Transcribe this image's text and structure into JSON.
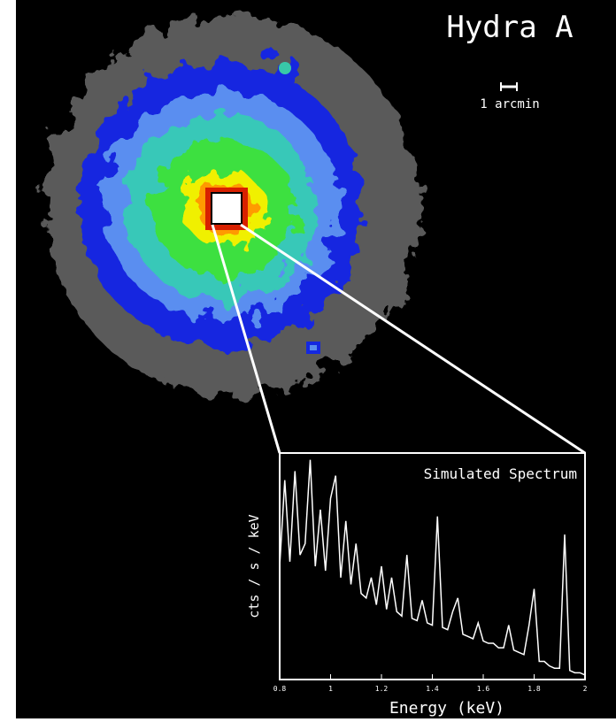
{
  "title": "Hydra A",
  "scale_label": "1 arcmin",
  "chart_data": {
    "type": "line",
    "title": "Simulated Spectrum",
    "x_label": "Energy (keV)",
    "y_label": "cts / s / keV",
    "x": [
      0.8,
      0.82,
      0.84,
      0.86,
      0.88,
      0.9,
      0.92,
      0.94,
      0.96,
      0.98,
      1.0,
      1.02,
      1.04,
      1.06,
      1.08,
      1.1,
      1.12,
      1.14,
      1.16,
      1.18,
      1.2,
      1.22,
      1.24,
      1.26,
      1.28,
      1.3,
      1.32,
      1.34,
      1.36,
      1.38,
      1.4,
      1.42,
      1.44,
      1.46,
      1.48,
      1.5,
      1.52,
      1.54,
      1.56,
      1.58,
      1.6,
      1.62,
      1.64,
      1.66,
      1.68,
      1.7,
      1.72,
      1.74,
      1.76,
      1.78,
      1.8,
      1.82,
      1.84,
      1.86,
      1.88,
      1.9,
      1.92,
      1.94,
      1.96,
      1.98,
      2.0
    ],
    "series": [
      {
        "color": "#ffffff",
        "values": [
          50,
          88,
          52,
          92,
          55,
          60,
          97,
          50,
          75,
          48,
          80,
          90,
          45,
          70,
          42,
          60,
          38,
          36,
          45,
          33,
          50,
          31,
          45,
          30,
          28,
          55,
          27,
          26,
          35,
          25,
          24,
          72,
          23,
          22,
          30,
          36,
          20,
          19,
          18,
          25,
          17,
          16,
          16,
          14,
          14,
          24,
          13,
          12,
          11,
          24,
          40,
          8,
          8,
          6,
          5,
          5,
          64,
          4,
          3,
          3,
          2
        ]
      }
    ],
    "xlim": [
      0.8,
      2.0
    ],
    "ylim": [
      0,
      100
    ],
    "xticks": [
      0.8,
      1,
      1.2,
      1.4,
      1.6,
      1.8,
      2
    ]
  }
}
